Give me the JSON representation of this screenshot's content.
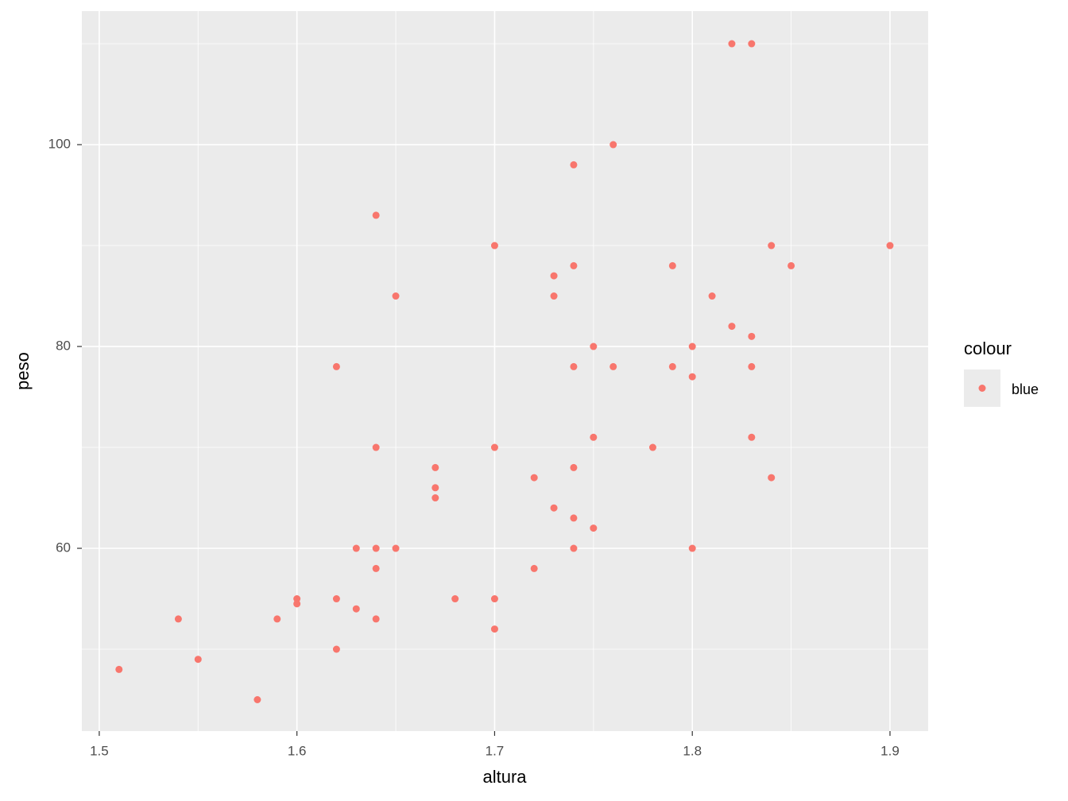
{
  "chart_data": {
    "type": "scatter",
    "x_label": "altura",
    "y_label": "peso",
    "legend_title": "colour",
    "xlim": [
      1.4912,
      1.9193
    ],
    "ylim": [
      41.89,
      113.23
    ],
    "xticks": [
      1.5,
      1.6,
      1.7,
      1.8,
      1.9
    ],
    "yticks": [
      60,
      80,
      100
    ],
    "x_minor_grid": [
      1.55,
      1.65,
      1.75,
      1.85
    ],
    "y_minor_grid": [
      50,
      70,
      90,
      110
    ],
    "grid": true,
    "series": [
      {
        "name": "blue",
        "color": "#F8766D",
        "x": [
          1.51,
          1.54,
          1.55,
          1.58,
          1.59,
          1.6,
          1.6,
          1.62,
          1.62,
          1.62,
          1.63,
          1.63,
          1.64,
          1.64,
          1.64,
          1.64,
          1.64,
          1.65,
          1.65,
          1.67,
          1.67,
          1.67,
          1.68,
          1.7,
          1.7,
          1.7,
          1.7,
          1.72,
          1.72,
          1.73,
          1.73,
          1.73,
          1.74,
          1.74,
          1.74,
          1.74,
          1.74,
          1.74,
          1.75,
          1.75,
          1.75,
          1.76,
          1.76,
          1.78,
          1.79,
          1.79,
          1.8,
          1.8,
          1.8,
          1.81,
          1.82,
          1.82,
          1.83,
          1.83,
          1.83,
          1.83,
          1.84,
          1.84,
          1.85,
          1.9
        ],
        "values": [
          48,
          53,
          49,
          45,
          53,
          55,
          54.5,
          78,
          55,
          50,
          60,
          54,
          93,
          70,
          60,
          58,
          53,
          85,
          60,
          68,
          66,
          65,
          55,
          90,
          70,
          55,
          52,
          67,
          58,
          87,
          85,
          64,
          98,
          88,
          78,
          68,
          63,
          60,
          80,
          71,
          62,
          100,
          78,
          70,
          88,
          78,
          80,
          77,
          60,
          85,
          110,
          82,
          110,
          81,
          78,
          71,
          90,
          67,
          88,
          90
        ]
      }
    ]
  }
}
